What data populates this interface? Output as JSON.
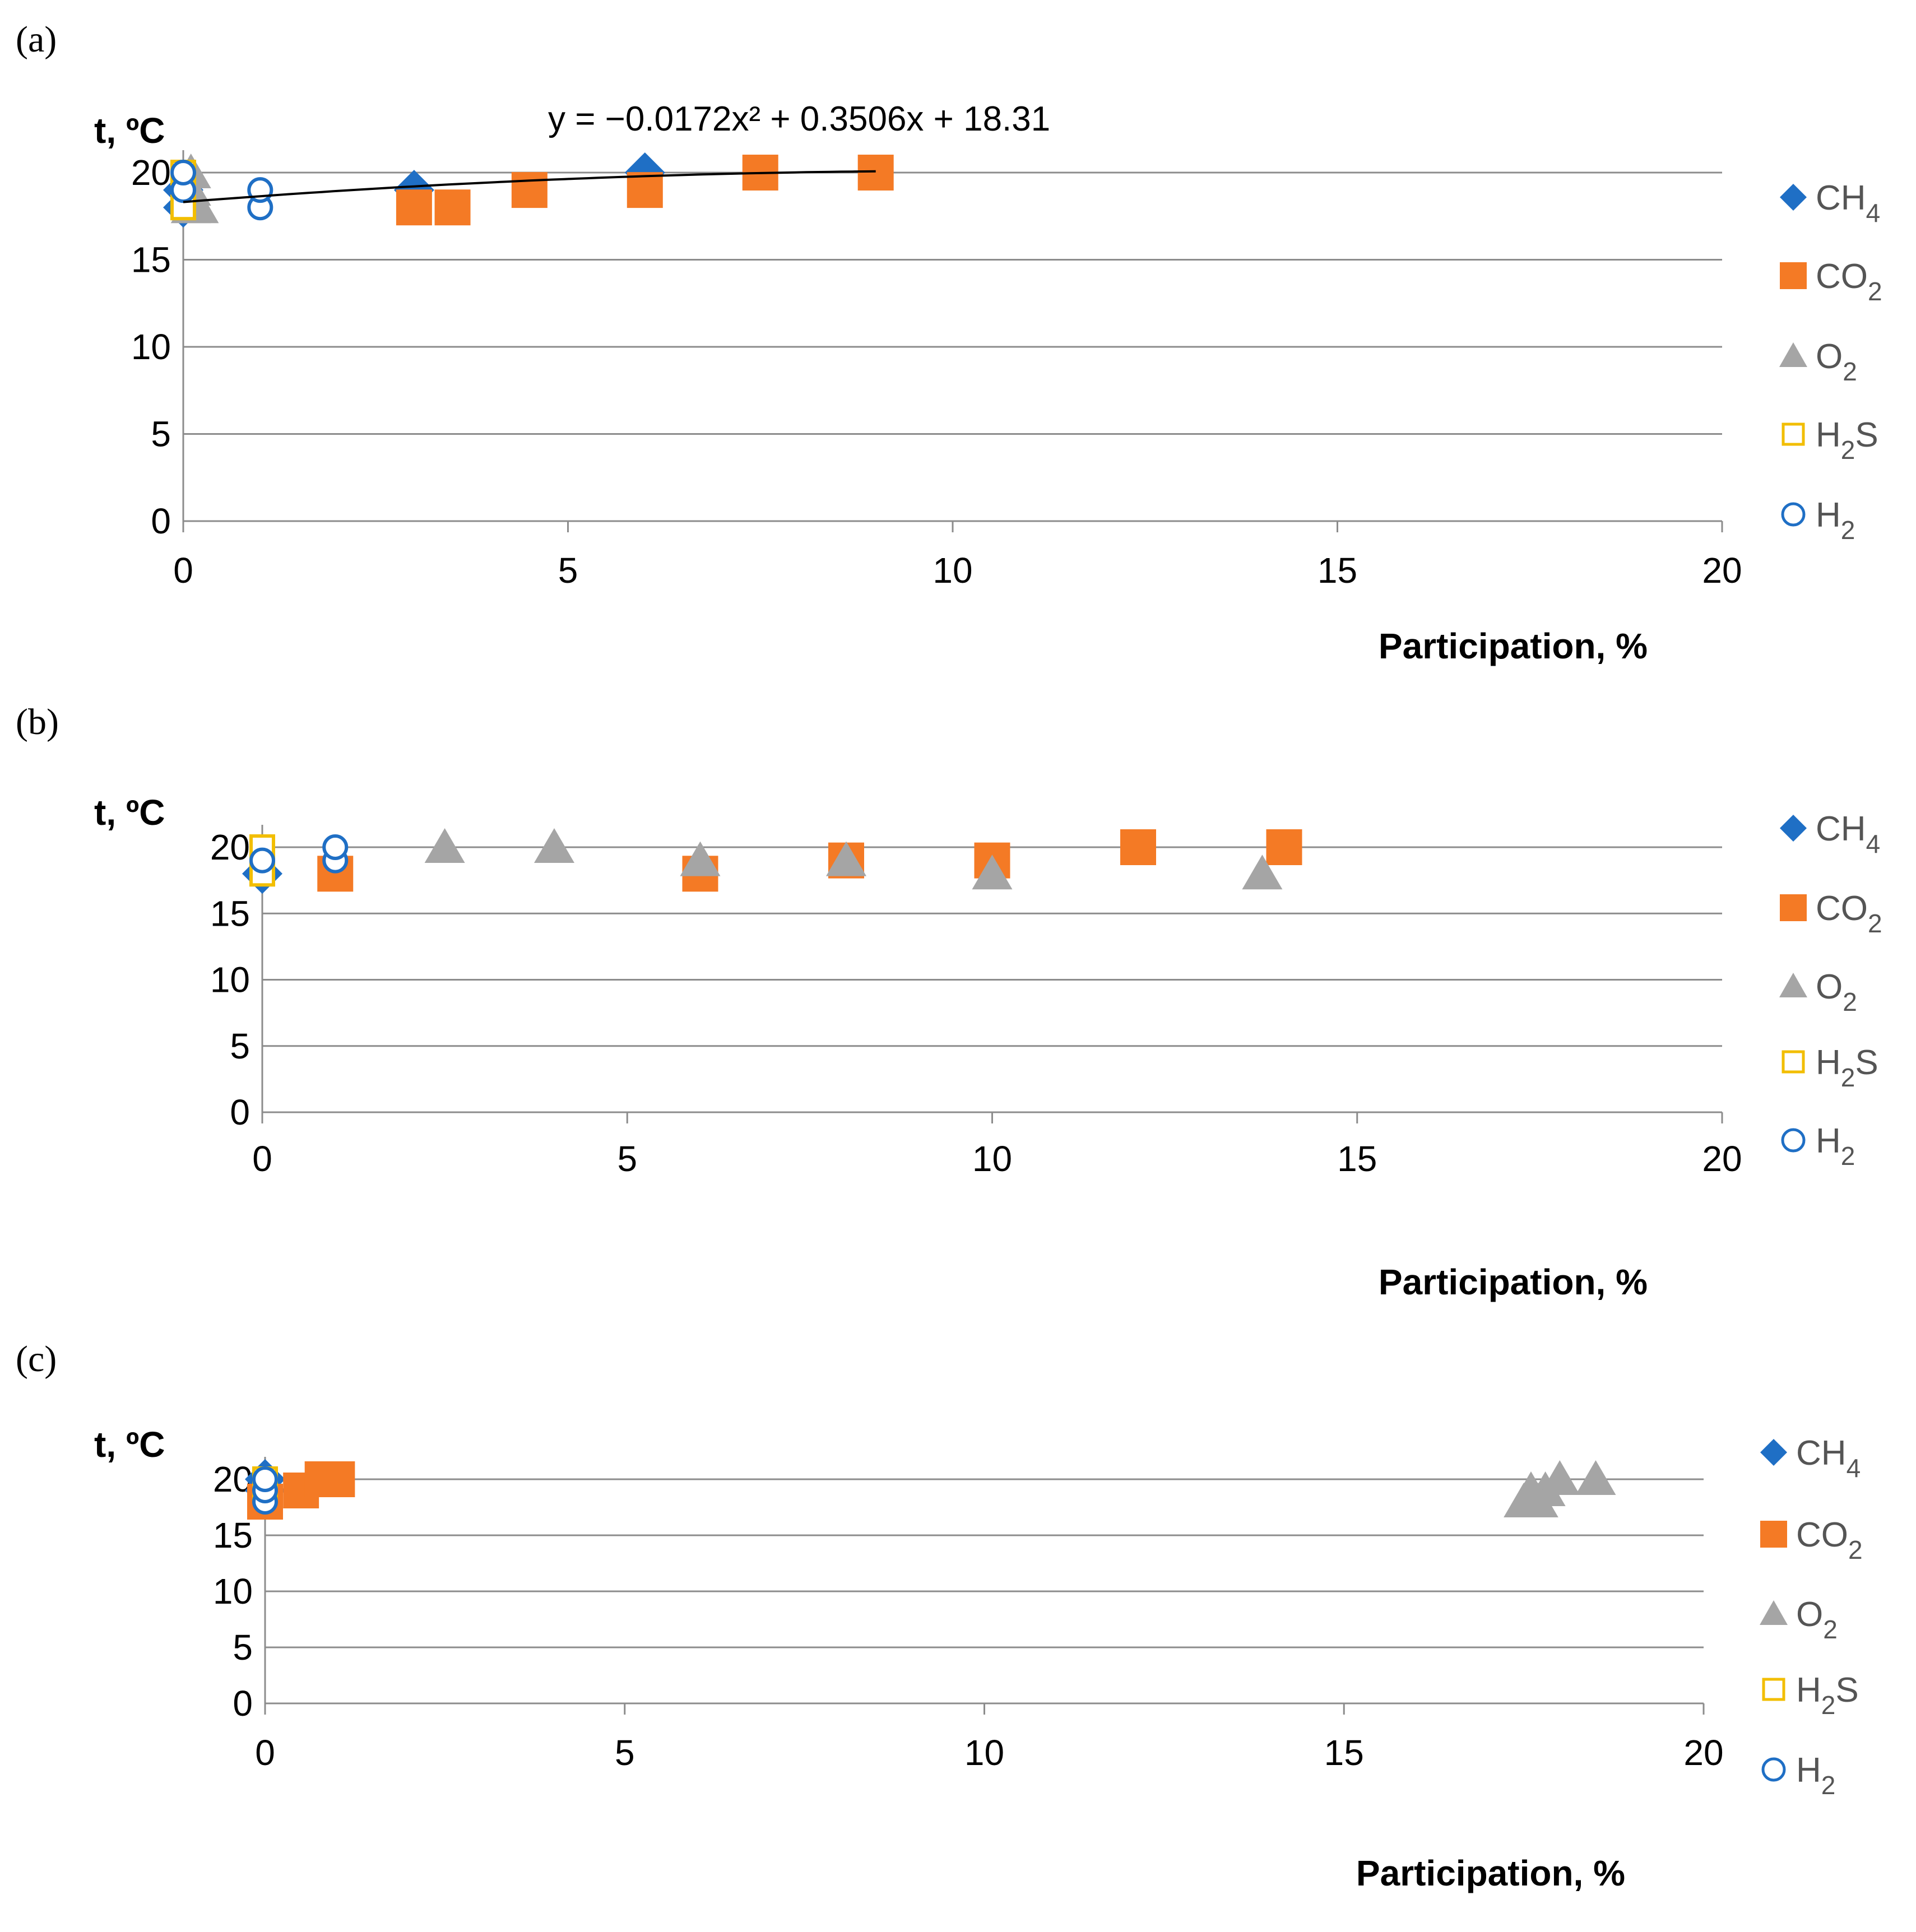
{
  "chart_data": [
    {
      "type": "scatter",
      "panel_label": "(a)",
      "xlabel": "Participation, %",
      "ylabel": "t, ºC",
      "xlim": [
        0,
        20
      ],
      "ylim": [
        0,
        20
      ],
      "xticks": [
        0,
        5,
        10,
        15,
        20
      ],
      "yticks": [
        0,
        5,
        10,
        15,
        20
      ],
      "grid": true,
      "legend": "right",
      "trendline": {
        "equation": "y = −0.0172x² + 0.3506x + 18.31",
        "a": -0.0172,
        "b": 0.3506,
        "c": 18.31,
        "x_range": [
          0,
          9
        ]
      },
      "series": [
        {
          "name": "CH4",
          "legend_main": "CH",
          "legend_sub": "4",
          "marker": "diamond",
          "color": "#1f6fc5",
          "points": [
            [
              0,
              18
            ],
            [
              0,
              19
            ],
            [
              3,
              19
            ],
            [
              6,
              20
            ]
          ]
        },
        {
          "name": "CO2",
          "legend_main": "CO",
          "legend_sub": "2",
          "marker": "square",
          "color": "#f47a25",
          "points": [
            [
              3,
              18
            ],
            [
              3.5,
              18
            ],
            [
              4.5,
              19
            ],
            [
              6,
              19
            ],
            [
              7.5,
              20
            ],
            [
              9,
              20
            ]
          ]
        },
        {
          "name": "O2",
          "legend_main": "O",
          "legend_sub": "2",
          "marker": "triangle",
          "color": "#a5a5a5",
          "points": [
            [
              0.1,
              18
            ],
            [
              0.2,
              18
            ],
            [
              0.1,
              19
            ],
            [
              0.1,
              20
            ]
          ]
        },
        {
          "name": "H2S",
          "legend_main": "H",
          "legend_sub": "2",
          "legend_tail": "S",
          "marker": "open-square",
          "color": "#f2be00",
          "points": [
            [
              0,
              18
            ],
            [
              0,
              20
            ]
          ]
        },
        {
          "name": "H2",
          "legend_main": "H",
          "legend_sub": "2",
          "marker": "open-circle",
          "color": "#1f6fc5",
          "points": [
            [
              0,
              19
            ],
            [
              0,
              20
            ],
            [
              1,
              18
            ],
            [
              1,
              19
            ]
          ]
        }
      ]
    },
    {
      "type": "scatter",
      "panel_label": "(b)",
      "xlabel": "Participation,  %",
      "ylabel": "t, ºC",
      "xlim": [
        0,
        20
      ],
      "ylim": [
        0,
        20
      ],
      "xticks": [
        0,
        5,
        10,
        15,
        20
      ],
      "yticks": [
        0,
        5,
        10,
        15,
        20
      ],
      "grid": true,
      "legend": "right",
      "series": [
        {
          "name": "CH4",
          "legend_main": "CH",
          "legend_sub": "4",
          "marker": "diamond",
          "color": "#1f6fc5",
          "points": [
            [
              0,
              18
            ]
          ]
        },
        {
          "name": "CO2",
          "legend_main": "CO",
          "legend_sub": "2",
          "marker": "square",
          "color": "#f47a25",
          "points": [
            [
              1,
              18
            ],
            [
              6,
              18
            ],
            [
              8,
              19
            ],
            [
              10,
              19
            ],
            [
              12,
              20
            ],
            [
              14,
              20
            ]
          ]
        },
        {
          "name": "O2",
          "legend_main": "O",
          "legend_sub": "2",
          "marker": "triangle",
          "color": "#a5a5a5",
          "points": [
            [
              2.5,
              20
            ],
            [
              4,
              20
            ],
            [
              6,
              19
            ],
            [
              8,
              19
            ],
            [
              10,
              18
            ],
            [
              13.7,
              18
            ]
          ]
        },
        {
          "name": "H2S",
          "legend_main": "H",
          "legend_sub": "2",
          "legend_tail": "S",
          "marker": "open-square",
          "color": "#f2be00",
          "points": [
            [
              0,
              18
            ],
            [
              0,
              20
            ]
          ]
        },
        {
          "name": "H2",
          "legend_main": "H",
          "legend_sub": "2",
          "marker": "open-circle",
          "color": "#1f6fc5",
          "points": [
            [
              0,
              19
            ],
            [
              1,
              19
            ],
            [
              1,
              20
            ]
          ]
        }
      ]
    },
    {
      "type": "scatter",
      "panel_label": "(c)",
      "xlabel": "Participation, %",
      "ylabel": "t, ºC",
      "xlim": [
        0,
        20
      ],
      "ylim": [
        0,
        20
      ],
      "xticks": [
        0,
        5,
        10,
        15,
        20
      ],
      "yticks": [
        0,
        5,
        10,
        15,
        20
      ],
      "grid": true,
      "legend": "right",
      "series": [
        {
          "name": "CH4",
          "legend_main": "CH",
          "legend_sub": "4",
          "marker": "diamond",
          "color": "#1f6fc5",
          "points": [
            [
              0,
              19
            ],
            [
              0,
              20
            ]
          ]
        },
        {
          "name": "CO2",
          "legend_main": "CO",
          "legend_sub": "2",
          "marker": "square",
          "color": "#f47a25",
          "points": [
            [
              0,
              18
            ],
            [
              0.5,
              19
            ],
            [
              0.8,
              20
            ],
            [
              1,
              20
            ]
          ]
        },
        {
          "name": "O2",
          "legend_main": "O",
          "legend_sub": "2",
          "marker": "triangle",
          "color": "#a5a5a5",
          "points": [
            [
              17.5,
              18
            ],
            [
              17.7,
              18
            ],
            [
              17.6,
              19
            ],
            [
              17.8,
              19
            ],
            [
              18,
              20
            ],
            [
              18.5,
              20
            ]
          ]
        },
        {
          "name": "H2S",
          "legend_main": "H",
          "legend_sub": "2",
          "legend_tail": "S",
          "marker": "open-square",
          "color": "#f2be00",
          "points": [
            [
              0,
              19
            ],
            [
              0,
              20
            ]
          ]
        },
        {
          "name": "H2",
          "legend_main": "H",
          "legend_sub": "2",
          "marker": "open-circle",
          "color": "#1f6fc5",
          "points": [
            [
              0,
              18
            ],
            [
              0,
              19
            ],
            [
              0,
              20
            ]
          ]
        }
      ]
    }
  ]
}
